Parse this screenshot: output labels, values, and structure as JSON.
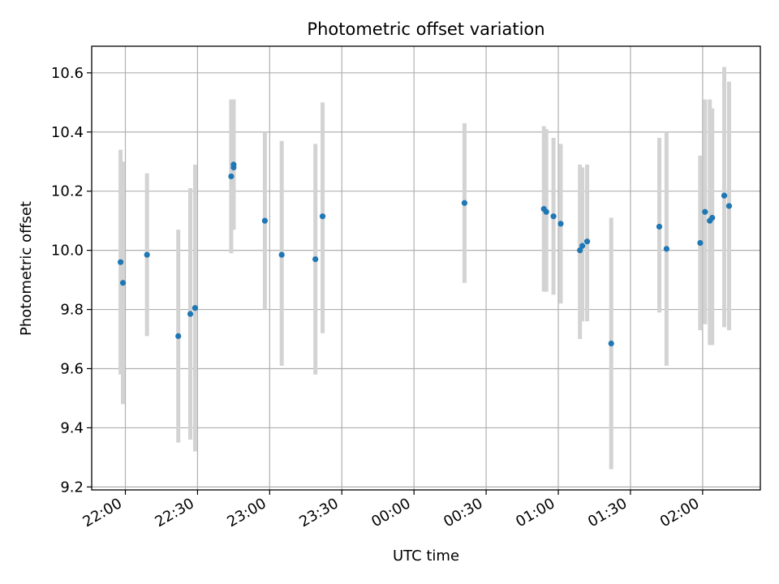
{
  "chart_data": {
    "type": "scatter",
    "title": "Photometric offset variation",
    "xlabel": "UTC time",
    "ylabel": "Photometric offset",
    "x_ticks": [
      "22:00",
      "22:30",
      "23:00",
      "23:30",
      "00:00",
      "00:30",
      "01:00",
      "01:30",
      "02:00"
    ],
    "y_ticks": [
      "9.2",
      "9.4",
      "9.6",
      "9.8",
      "10.0",
      "10.2",
      "10.4",
      "10.6"
    ],
    "xlim": [
      "21:46",
      "02:24"
    ],
    "ylim": [
      9.19,
      10.69
    ],
    "grid": true,
    "point_color": "#1f77b4",
    "errorbar_color": "#d3d3d3",
    "series": [
      {
        "points": [
          {
            "x": "21:58",
            "y": 9.96,
            "lo": 9.58,
            "hi": 10.34
          },
          {
            "x": "21:59",
            "y": 9.89,
            "lo": 9.48,
            "hi": 10.3
          },
          {
            "x": "22:09",
            "y": 9.985,
            "lo": 9.71,
            "hi": 10.26
          },
          {
            "x": "22:22",
            "y": 9.71,
            "lo": 9.35,
            "hi": 10.07
          },
          {
            "x": "22:27",
            "y": 9.785,
            "lo": 9.36,
            "hi": 10.21
          },
          {
            "x": "22:29",
            "y": 9.805,
            "lo": 9.32,
            "hi": 10.29
          },
          {
            "x": "22:44",
            "y": 10.25,
            "lo": 9.99,
            "hi": 10.51
          },
          {
            "x": "22:45",
            "y": 10.28,
            "lo": 10.07,
            "hi": 10.51
          },
          {
            "x": "22:45",
            "y": 10.29,
            "lo": 10.07,
            "hi": 10.51
          },
          {
            "x": "22:58",
            "y": 10.1,
            "lo": 9.8,
            "hi": 10.4
          },
          {
            "x": "23:05",
            "y": 9.985,
            "lo": 9.61,
            "hi": 10.37
          },
          {
            "x": "23:19",
            "y": 9.97,
            "lo": 9.58,
            "hi": 10.36
          },
          {
            "x": "23:22",
            "y": 10.115,
            "lo": 9.72,
            "hi": 10.5
          },
          {
            "x": "00:21",
            "y": 10.16,
            "lo": 9.89,
            "hi": 10.43
          },
          {
            "x": "00:54",
            "y": 10.14,
            "lo": 9.86,
            "hi": 10.42
          },
          {
            "x": "00:55",
            "y": 10.13,
            "lo": 9.86,
            "hi": 10.41
          },
          {
            "x": "00:58",
            "y": 10.115,
            "lo": 9.85,
            "hi": 10.38
          },
          {
            "x": "01:01",
            "y": 10.09,
            "lo": 9.82,
            "hi": 10.36
          },
          {
            "x": "01:09",
            "y": 10.0,
            "lo": 9.7,
            "hi": 10.29
          },
          {
            "x": "01:10",
            "y": 10.015,
            "lo": 9.76,
            "hi": 10.28
          },
          {
            "x": "01:12",
            "y": 10.03,
            "lo": 9.76,
            "hi": 10.29
          },
          {
            "x": "01:22",
            "y": 9.685,
            "lo": 9.26,
            "hi": 10.11
          },
          {
            "x": "01:42",
            "y": 10.08,
            "lo": 9.79,
            "hi": 10.38
          },
          {
            "x": "01:45",
            "y": 10.005,
            "lo": 9.61,
            "hi": 10.4
          },
          {
            "x": "01:59",
            "y": 10.025,
            "lo": 9.73,
            "hi": 10.32
          },
          {
            "x": "02:01",
            "y": 10.13,
            "lo": 9.75,
            "hi": 10.51
          },
          {
            "x": "02:03",
            "y": 10.1,
            "lo": 9.68,
            "hi": 10.51
          },
          {
            "x": "02:04",
            "y": 10.11,
            "lo": 9.68,
            "hi": 10.48
          },
          {
            "x": "02:09",
            "y": 10.185,
            "lo": 9.74,
            "hi": 10.62
          },
          {
            "x": "02:11",
            "y": 10.15,
            "lo": 9.73,
            "hi": 10.57
          }
        ]
      }
    ]
  }
}
